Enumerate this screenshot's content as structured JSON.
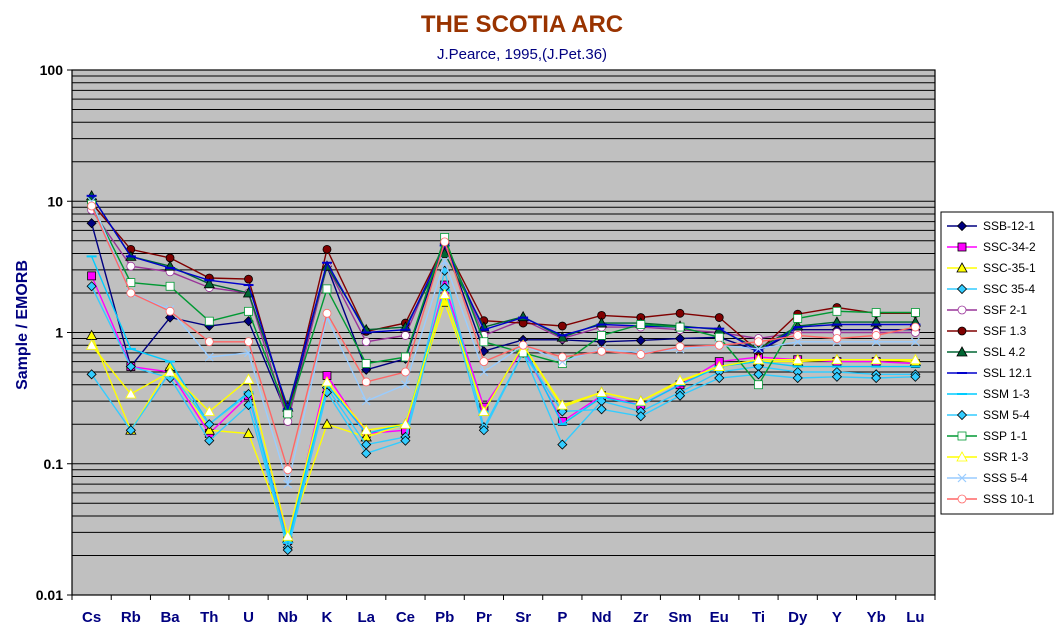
{
  "chart_data": {
    "type": "line",
    "title": "THE SCOTIA ARC",
    "subtitle": "J.Pearce, 1995,(J.Pet.36)",
    "ylabel": "Sample / EMORB",
    "xlabel": "",
    "yscale": "log",
    "ylim": [
      0.01,
      100
    ],
    "yticks": [
      "0.01",
      "0.1",
      "1",
      "10",
      "100"
    ],
    "grid": true,
    "legend_position": "right",
    "plot_background": "#c0c0c0",
    "categories": [
      "Cs",
      "Rb",
      "Ba",
      "Th",
      "U",
      "Nb",
      "K",
      "La",
      "Ce",
      "Pb",
      "Pr",
      "Sr",
      "P",
      "Nd",
      "Zr",
      "Sm",
      "Eu",
      "Ti",
      "Dy",
      "Y",
      "Yb",
      "Lu"
    ],
    "series": [
      {
        "name": "SSB-12-1",
        "color": "#000080",
        "marker": "diamond",
        "filled": true,
        "values": [
          6.8,
          0.55,
          1.3,
          1.12,
          1.22,
          0.23,
          3.2,
          0.52,
          0.63,
          4.8,
          0.72,
          0.88,
          0.88,
          0.85,
          0.87,
          0.9,
          0.92,
          0.72,
          1.05,
          1.05,
          1.05,
          1.05
        ]
      },
      {
        "name": "SSC-34-2",
        "color": "#ff00ff",
        "marker": "square",
        "filled": true,
        "values": [
          2.7,
          0.55,
          0.5,
          0.17,
          0.33,
          0.026,
          0.47,
          0.17,
          0.18,
          2.3,
          0.27,
          0.75,
          0.21,
          0.33,
          0.28,
          0.4,
          0.6,
          0.65,
          0.62,
          0.6,
          0.6,
          0.58
        ]
      },
      {
        "name": "SSC-35-1",
        "color": "#ffff00",
        "marker": "triangle",
        "filled": true,
        "values": [
          0.95,
          0.18,
          0.55,
          0.18,
          0.17,
          0.027,
          0.2,
          0.16,
          0.2,
          1.7,
          0.25,
          0.8,
          0.27,
          0.35,
          0.3,
          0.42,
          0.55,
          0.6,
          0.6,
          0.62,
          0.62,
          0.6
        ]
      },
      {
        "name": "SSC 35-4",
        "color": "#33ccff",
        "marker": "diamond",
        "filled": true,
        "values": [
          2.25,
          0.55,
          0.45,
          0.15,
          0.28,
          0.023,
          0.38,
          0.14,
          0.16,
          2.95,
          0.19,
          0.7,
          0.14,
          0.3,
          0.25,
          0.35,
          0.5,
          0.55,
          0.5,
          0.5,
          0.48,
          0.48
        ]
      },
      {
        "name": "SSF 2-1",
        "color": "#993399",
        "marker": "circle",
        "filled": false,
        "values": [
          8.6,
          3.2,
          2.9,
          2.2,
          2.0,
          0.21,
          3.2,
          0.85,
          0.95,
          4.8,
          0.95,
          1.25,
          0.9,
          1.1,
          1.1,
          1.05,
          1.0,
          0.9,
          1.0,
          1.0,
          1.0,
          1.0
        ]
      },
      {
        "name": "SSF 1.3",
        "color": "#800000",
        "marker": "circle",
        "filled": true,
        "values": [
          9.7,
          4.3,
          3.7,
          2.6,
          2.55,
          0.24,
          4.3,
          1.02,
          1.18,
          4.7,
          1.23,
          1.18,
          1.12,
          1.35,
          1.3,
          1.4,
          1.3,
          0.72,
          1.38,
          1.55,
          1.4,
          1.4
        ]
      },
      {
        "name": "SSL 4.2",
        "color": "#006633",
        "marker": "triangle",
        "filled": true,
        "values": [
          11,
          3.8,
          3.2,
          2.35,
          2.0,
          0.27,
          3.2,
          1.05,
          1.1,
          4.0,
          1.1,
          1.32,
          0.92,
          1.18,
          1.18,
          1.12,
          1.05,
          0.75,
          1.12,
          1.2,
          1.2,
          1.2
        ]
      },
      {
        "name": "SSL 12.1",
        "color": "#0000cc",
        "marker": "dash",
        "filled": true,
        "values": [
          11,
          3.8,
          3.1,
          2.5,
          2.3,
          0.26,
          3.4,
          1.0,
          1.05,
          4.6,
          1.05,
          1.3,
          0.95,
          1.15,
          1.12,
          1.1,
          1.07,
          0.72,
          1.1,
          1.15,
          1.15,
          1.15
        ]
      },
      {
        "name": "SSM 1-3",
        "color": "#00ccff",
        "marker": "dash",
        "filled": true,
        "values": [
          3.8,
          0.75,
          0.6,
          0.2,
          0.35,
          0.025,
          0.4,
          0.17,
          0.2,
          2.1,
          0.25,
          0.8,
          0.2,
          0.32,
          0.28,
          0.4,
          0.55,
          0.6,
          0.55,
          0.55,
          0.55,
          0.55
        ]
      },
      {
        "name": "SSM 5-4",
        "color": "#33ccff",
        "marker": "diamond",
        "filled": true,
        "values": [
          0.48,
          0.18,
          0.5,
          0.2,
          0.34,
          0.022,
          0.35,
          0.12,
          0.15,
          2.2,
          0.18,
          0.7,
          0.25,
          0.26,
          0.23,
          0.33,
          0.45,
          0.48,
          0.45,
          0.46,
          0.45,
          0.46
        ]
      },
      {
        "name": "SSP 1-1",
        "color": "#009933",
        "marker": "square",
        "filled": false,
        "values": [
          9.5,
          2.4,
          2.25,
          1.22,
          1.45,
          0.24,
          2.15,
          0.58,
          0.65,
          5.3,
          0.85,
          0.7,
          0.58,
          0.95,
          1.15,
          1.1,
          0.92,
          0.4,
          1.28,
          1.45,
          1.42,
          1.42
        ]
      },
      {
        "name": "SSR 1-3",
        "color": "#ffff00",
        "marker": "triangle",
        "filled": false,
        "values": [
          0.8,
          0.34,
          0.5,
          0.25,
          0.44,
          0.028,
          0.42,
          0.18,
          0.2,
          1.95,
          0.25,
          0.8,
          0.28,
          0.35,
          0.3,
          0.43,
          0.55,
          0.62,
          0.62,
          0.62,
          0.62,
          0.62
        ]
      },
      {
        "name": "SSS 5-4",
        "color": "#99ccff",
        "marker": "cross",
        "filled": false,
        "values": [
          10,
          2.0,
          1.5,
          0.65,
          0.7,
          0.07,
          1.3,
          0.3,
          0.4,
          3.5,
          0.5,
          0.8,
          0.6,
          0.75,
          0.7,
          0.75,
          0.8,
          0.75,
          0.85,
          0.85,
          0.85,
          0.85
        ]
      },
      {
        "name": "SSS 10-1",
        "color": "#ff6666",
        "marker": "circle",
        "filled": false,
        "values": [
          9.2,
          2.0,
          1.45,
          0.85,
          0.85,
          0.09,
          1.4,
          0.42,
          0.5,
          4.9,
          0.6,
          0.8,
          0.65,
          0.72,
          0.68,
          0.78,
          0.8,
          0.85,
          0.95,
          0.9,
          0.95,
          1.1
        ]
      }
    ]
  }
}
